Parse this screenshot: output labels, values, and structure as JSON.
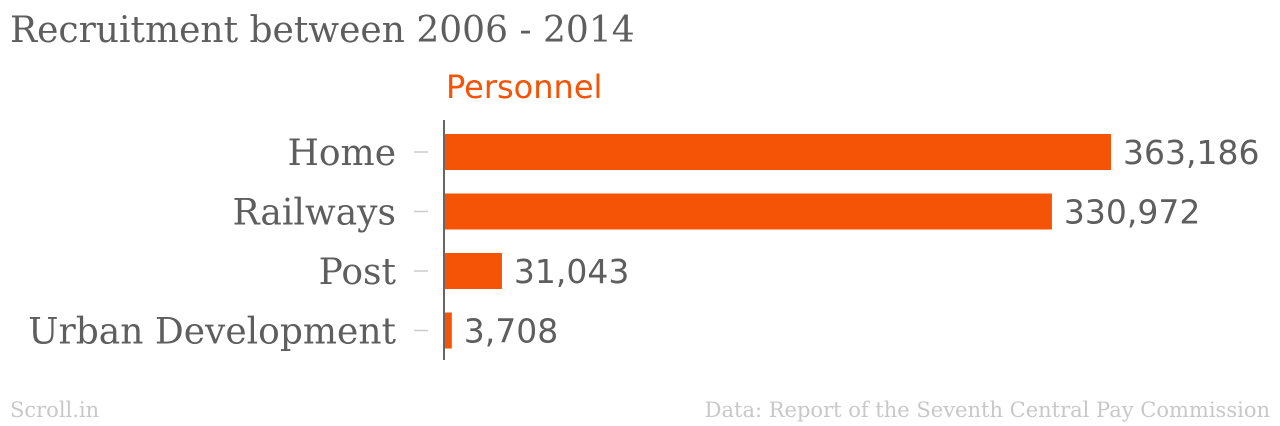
{
  "chart_data": {
    "type": "bar",
    "orientation": "horizontal",
    "title": "Recruitment between 2006 - 2014",
    "categories": [
      "Home",
      "Railways",
      "Post",
      "Urban Development"
    ],
    "series": [
      {
        "name": "Personnel",
        "values": [
          363186,
          330972,
          31043,
          3708
        ],
        "labels": [
          "363,186",
          "330,972",
          "31,043",
          "3,708"
        ]
      }
    ],
    "xlim": [
      0,
      363186
    ],
    "grid": false,
    "colors": {
      "bar": "#f55306"
    }
  },
  "footer": {
    "brand": "Scroll.in",
    "source": "Data: Report of the Seventh Central Pay Commission"
  }
}
